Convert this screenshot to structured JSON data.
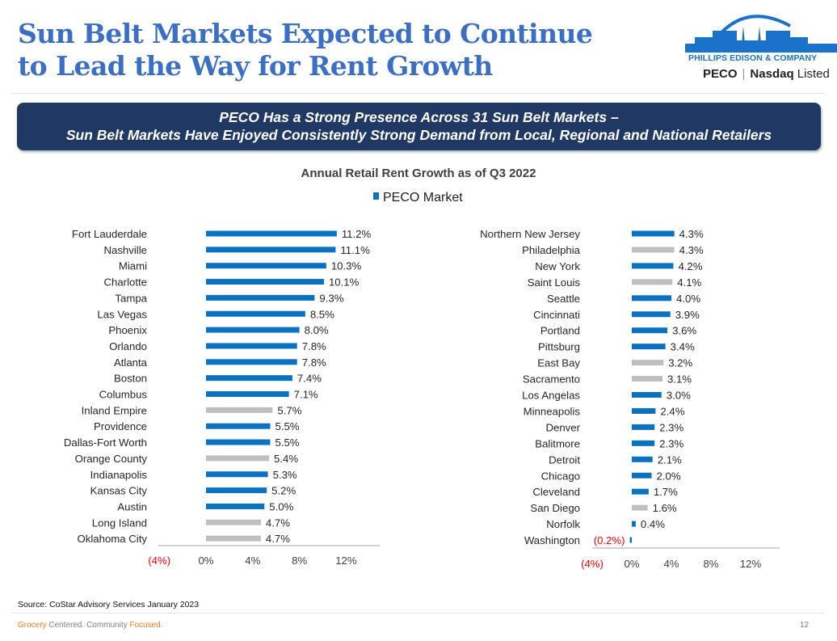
{
  "header": {
    "title_line1": "Sun Belt Markets Expected to Continue",
    "title_line2": "to Lead the Way for Rent Growth"
  },
  "logo": {
    "company": "PHILLIPS EDISON & COMPANY",
    "ticker": "PECO",
    "listing": "Nasdaq",
    "listing_suffix": "Listed"
  },
  "banner": {
    "line1": "PECO Has a Strong Presence Across 31 Sun Belt Markets –",
    "line2": "Sun Belt Markets Have Enjoyed Consistently Strong Demand from Local, Regional and National Retailers"
  },
  "colors": {
    "title": "#3a6fc4",
    "banner_bg": "#1f3864",
    "peco_bar": "#0b72c2",
    "other_bar": "#bfbfbf",
    "negative_label": "#ff0000",
    "accent_orange": "#f07f1e"
  },
  "chart_data": [
    {
      "type": "bar",
      "orientation": "horizontal",
      "title": "Annual Retail Rent Growth as of Q3 2022",
      "legend": [
        "PECO Market"
      ],
      "legend_placement": "top-center",
      "xlim": [
        -4,
        14
      ],
      "xticks": [
        "(4%)",
        "0%",
        "4%",
        "8%",
        "12%"
      ],
      "xtick_values": [
        -4,
        0,
        4,
        8,
        12
      ],
      "grid": false,
      "categories": [
        "Fort Lauderdale",
        "Nashville",
        "Miami",
        "Charlotte",
        "Tampa",
        "Las Vegas",
        "Phoenix",
        "Orlando",
        "Atlanta",
        "Boston",
        "Columbus",
        "Inland Empire",
        "Providence",
        "Dallas-Fort Worth",
        "Orange County",
        "Indianapolis",
        "Kansas City",
        "Austin",
        "Long Island",
        "Oklahoma City"
      ],
      "values": [
        11.2,
        11.1,
        10.3,
        10.1,
        9.3,
        8.5,
        8.0,
        7.8,
        7.8,
        7.4,
        7.1,
        5.7,
        5.5,
        5.5,
        5.4,
        5.3,
        5.2,
        5.0,
        4.7,
        4.7
      ],
      "labels": [
        "11.2%",
        "11.1%",
        "10.3%",
        "10.1%",
        "9.3%",
        "8.5%",
        "8.0%",
        "7.8%",
        "7.8%",
        "7.4%",
        "7.1%",
        "5.7%",
        "5.5%",
        "5.5%",
        "5.4%",
        "5.3%",
        "5.2%",
        "5.0%",
        "4.7%",
        "4.7%"
      ],
      "peco_market": [
        true,
        true,
        true,
        true,
        true,
        true,
        true,
        true,
        true,
        true,
        true,
        false,
        true,
        true,
        false,
        true,
        true,
        true,
        false,
        false
      ]
    },
    {
      "type": "bar",
      "orientation": "horizontal",
      "title": "",
      "xlim": [
        -4,
        15
      ],
      "xticks": [
        "(4%)",
        "0%",
        "4%",
        "8%",
        "12%"
      ],
      "xtick_values": [
        -4,
        0,
        4,
        8,
        12
      ],
      "grid": false,
      "categories": [
        "Northern New Jersey",
        "Philadelphia",
        "New York",
        "Saint Louis",
        "Seattle",
        "Cincinnati",
        "Portland",
        "Pittsburg",
        "East Bay",
        "Sacramento",
        "Los Angelas",
        "Minneapolis",
        "Denver",
        "Balitmore",
        "Detroit",
        "Chicago",
        "Cleveland",
        "San Diego",
        "Norfolk",
        "Washington"
      ],
      "values": [
        4.3,
        4.3,
        4.2,
        4.1,
        4.0,
        3.9,
        3.6,
        3.4,
        3.2,
        3.1,
        3.0,
        2.4,
        2.3,
        2.3,
        2.1,
        2.0,
        1.7,
        1.6,
        0.4,
        -0.2
      ],
      "labels": [
        "4.3%",
        "4.3%",
        "4.2%",
        "4.1%",
        "4.0%",
        "3.9%",
        "3.6%",
        "3.4%",
        "3.2%",
        "3.1%",
        "3.0%",
        "2.4%",
        "2.3%",
        "2.3%",
        "2.1%",
        "2.0%",
        "1.7%",
        "1.6%",
        "0.4%",
        "(0.2%)"
      ],
      "peco_market": [
        true,
        false,
        true,
        false,
        true,
        true,
        true,
        true,
        false,
        false,
        true,
        true,
        true,
        true,
        true,
        true,
        true,
        false,
        true,
        true
      ]
    }
  ],
  "footer": {
    "source": "Source: CoStar Advisory Services January 2023",
    "tagline_w1": "Grocery",
    "tagline_w2": " Centered. Community ",
    "tagline_w3": "Focused.",
    "page_number": "12"
  }
}
